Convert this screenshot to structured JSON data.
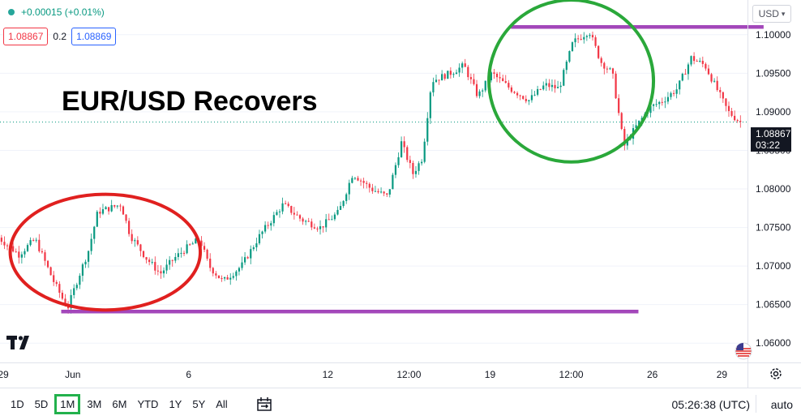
{
  "header": {
    "change_text": "+0.00015 (+0.01%)",
    "bid": "1.08867",
    "spread": "0.2",
    "ask": "1.08869"
  },
  "price_scale": {
    "currency": "USD",
    "last_price": "1.08867",
    "countdown": "03:22"
  },
  "bottombar": {
    "ranges": [
      "1D",
      "5D",
      "1M",
      "3M",
      "6M",
      "YTD",
      "1Y",
      "5Y",
      "All"
    ],
    "active_range": "1M",
    "clock": "05:26:38 (UTC)",
    "scale_mode": "auto"
  },
  "icons": {
    "logo": "tradingview-logo-icon",
    "date_range": "calendar-range-icon",
    "settings": "settings-icon",
    "flag": "us-flag-icon"
  },
  "chart_data": {
    "type": "candlestick",
    "title": "EUR/USD Recovers",
    "symbol": "EUR/USD",
    "yticks": [
      "1.10000",
      "1.09500",
      "1.09000",
      "1.08500",
      "1.08000",
      "1.07500",
      "1.07000",
      "1.06500",
      "1.06000"
    ],
    "xticks": [
      {
        "label": "29",
        "day": 0
      },
      {
        "label": "Jun",
        "day": 3
      },
      {
        "label": "6",
        "day": 8
      },
      {
        "label": "12",
        "day": 14
      },
      {
        "label": "12:00",
        "day": 17.5
      },
      {
        "label": "19",
        "day": 21
      },
      {
        "label": "12:00",
        "day": 24.5
      },
      {
        "label": "26",
        "day": 28
      },
      {
        "label": "29",
        "day": 31
      }
    ],
    "ylim": [
      1.0575,
      1.1045
    ],
    "xlim": [
      0,
      32
    ],
    "key_points": [
      [
        -0.2,
        1.074
      ],
      [
        0.8,
        1.0715
      ],
      [
        1.5,
        1.0735
      ],
      [
        2.3,
        1.068
      ],
      [
        2.9,
        1.0645
      ],
      [
        3.3,
        1.068
      ],
      [
        3.8,
        1.072
      ],
      [
        4.2,
        1.077
      ],
      [
        4.7,
        1.0775
      ],
      [
        5.2,
        1.078
      ],
      [
        5.6,
        1.074
      ],
      [
        6.3,
        1.071
      ],
      [
        6.9,
        1.069
      ],
      [
        7.5,
        1.071
      ],
      [
        8.1,
        1.0725
      ],
      [
        8.6,
        1.0735
      ],
      [
        9.0,
        1.07
      ],
      [
        9.6,
        1.068
      ],
      [
        10.4,
        1.07
      ],
      [
        11.2,
        1.074
      ],
      [
        12.2,
        1.078
      ],
      [
        13.0,
        1.076
      ],
      [
        13.8,
        1.075
      ],
      [
        14.6,
        1.077
      ],
      [
        15.2,
        1.082
      ],
      [
        16.0,
        1.08
      ],
      [
        16.7,
        1.079
      ],
      [
        17.3,
        1.086
      ],
      [
        17.8,
        1.082
      ],
      [
        18.2,
        1.084
      ],
      [
        18.6,
        1.094
      ],
      [
        19.4,
        1.095
      ],
      [
        20.0,
        1.096
      ],
      [
        20.6,
        1.092
      ],
      [
        21.2,
        1.095
      ],
      [
        22.0,
        1.093
      ],
      [
        22.8,
        1.0915
      ],
      [
        23.5,
        1.0935
      ],
      [
        24.1,
        1.093
      ],
      [
        24.7,
        1.099
      ],
      [
        25.4,
        1.1005
      ],
      [
        25.9,
        1.0965
      ],
      [
        26.4,
        1.095
      ],
      [
        26.9,
        1.0855
      ],
      [
        27.4,
        1.088
      ],
      [
        28.0,
        1.0905
      ],
      [
        28.6,
        1.0915
      ],
      [
        29.2,
        1.093
      ],
      [
        29.8,
        1.097
      ],
      [
        30.4,
        1.096
      ],
      [
        30.9,
        1.093
      ],
      [
        31.4,
        1.09
      ],
      [
        31.9,
        1.0887
      ]
    ],
    "annotations": {
      "resistance_line": {
        "value": 1.101,
        "x_from": 21.9,
        "x_to": 32.8,
        "color": "#a347ba"
      },
      "support_line": {
        "value": 1.0641,
        "x_from": 2.5,
        "x_to": 27.4,
        "color": "#a347ba"
      },
      "red_circle": {
        "x_center": 4.4,
        "y_center": 1.0718,
        "x_radius": 8.2,
        "y_radius": 0.0075,
        "color": "#e0201f"
      },
      "green_circle": {
        "x_center": 24.5,
        "y_center": 1.094,
        "x_radius": 7.1,
        "y_radius": 0.0105,
        "color": "#2aa83a"
      }
    },
    "last_price": 1.08867,
    "up_color": "#089981",
    "down_color": "#f23645"
  }
}
